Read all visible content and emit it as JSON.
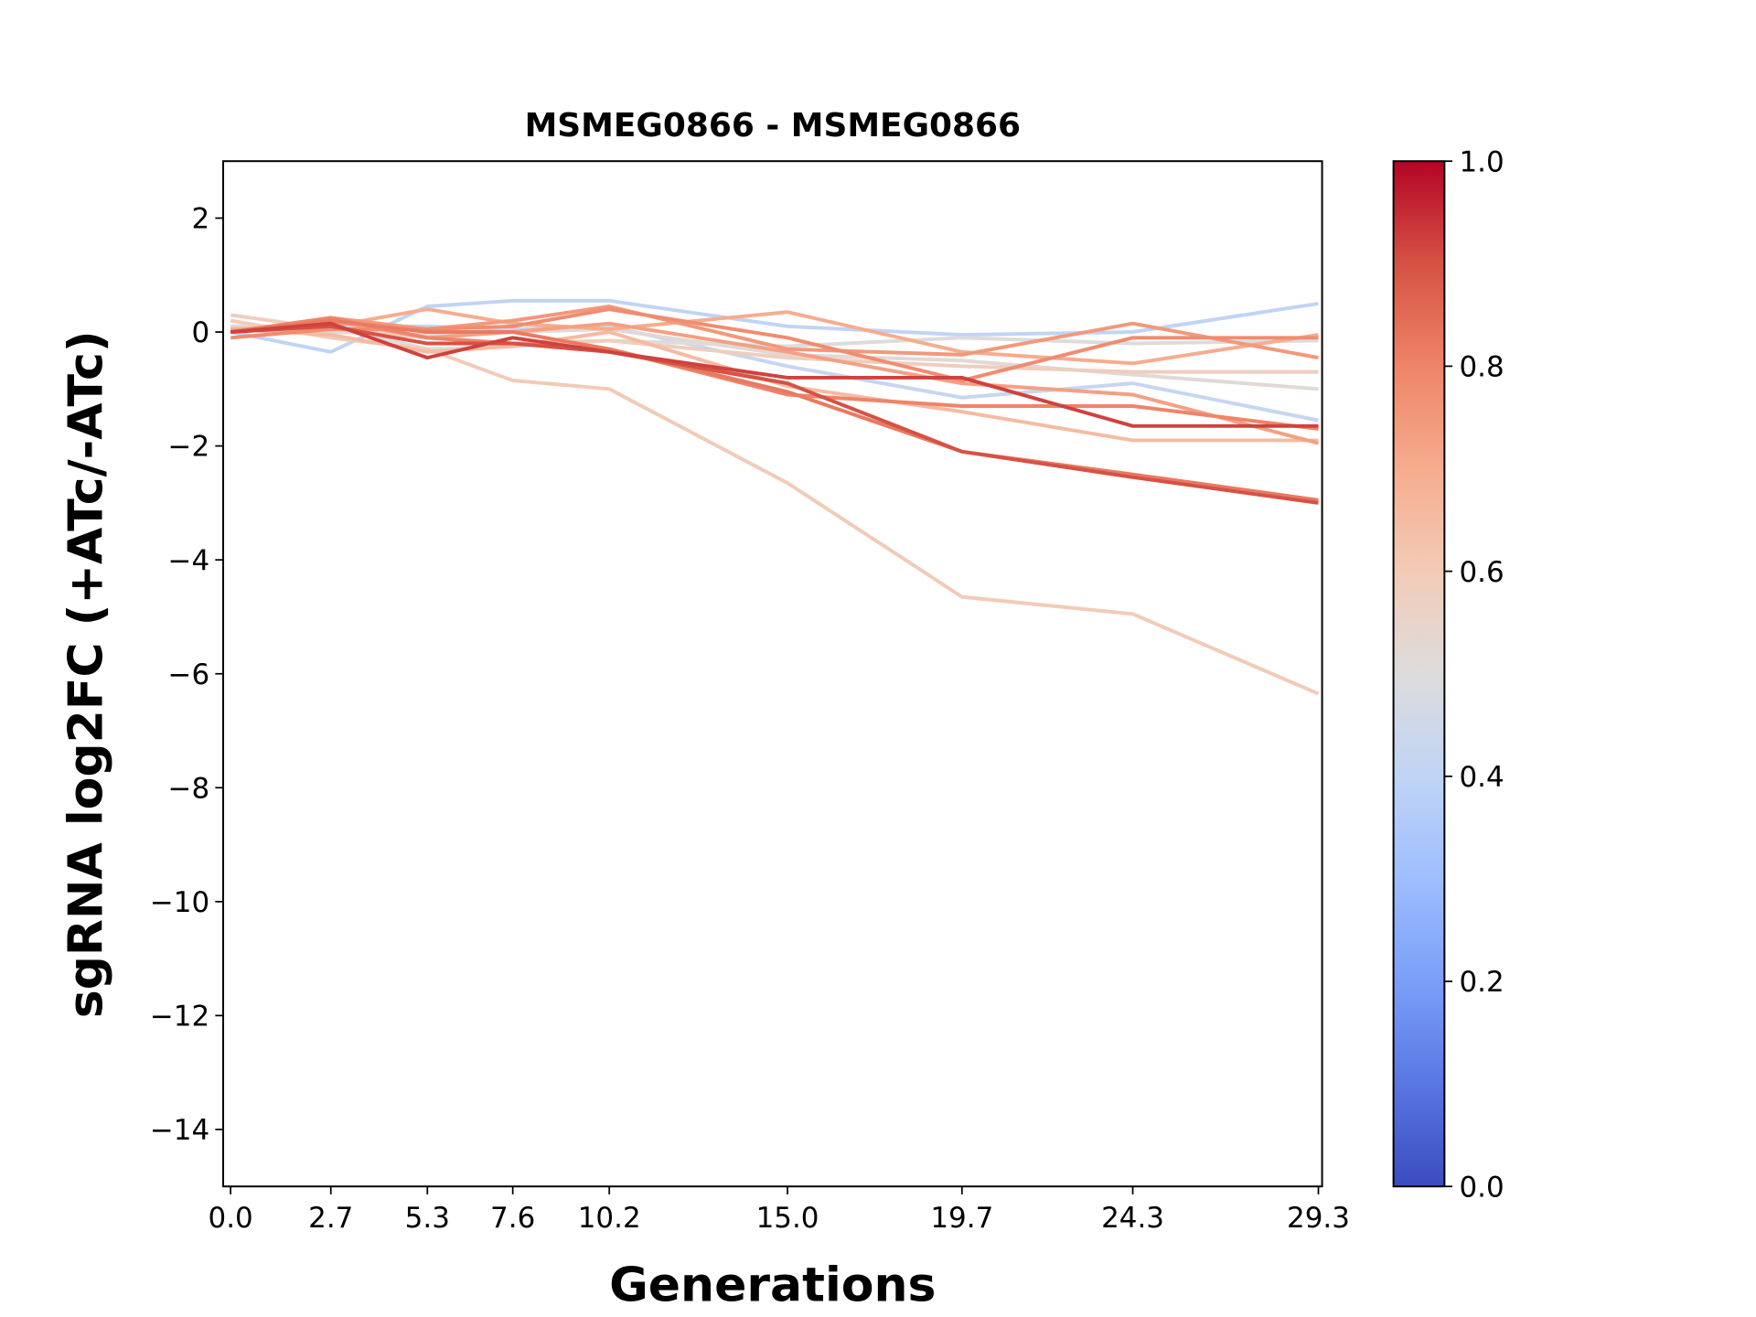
{
  "chart_data": {
    "type": "line",
    "title": "MSMEG0866 - MSMEG0866",
    "xlabel": "Generations",
    "ylabel": "sgRNA log2FC (+ATc/-ATc)",
    "x": [
      0.0,
      2.7,
      5.3,
      7.6,
      10.2,
      15.0,
      19.7,
      24.3,
      29.3
    ],
    "x_tick_labels": [
      "0.0",
      "2.7",
      "5.3",
      "7.6",
      "10.2",
      "15.0",
      "19.7",
      "24.3",
      "29.3"
    ],
    "xlim": [
      -0.2,
      29.4
    ],
    "ylim": [
      -15,
      3
    ],
    "y_ticks": [
      2,
      0,
      -2,
      -4,
      -6,
      -8,
      -10,
      -12,
      -14
    ],
    "y_tick_labels": [
      "2",
      "0",
      "−2",
      "−4",
      "−6",
      "−8",
      "−10",
      "−12",
      "−14"
    ],
    "grid": false,
    "colormap": "coolwarm",
    "colorbar": {
      "range": [
        0.0,
        1.0
      ],
      "tick_labels": [
        "0.0",
        "0.2",
        "0.4",
        "0.6",
        "0.8",
        "1.0"
      ],
      "ticks": [
        0.0,
        0.2,
        0.4,
        0.6,
        0.8,
        1.0
      ]
    },
    "series": [
      {
        "color_value": 0.4,
        "values": [
          0.0,
          -0.35,
          0.45,
          0.55,
          0.55,
          0.1,
          -0.05,
          0.0,
          0.5
        ]
      },
      {
        "color_value": 0.42,
        "values": [
          0.0,
          0.1,
          0.1,
          0.05,
          0.1,
          -0.6,
          -1.15,
          -0.9,
          -1.55
        ]
      },
      {
        "color_value": 0.5,
        "values": [
          0.1,
          0.1,
          -0.3,
          -0.25,
          -0.15,
          -0.25,
          -0.1,
          -0.2,
          -0.15
        ]
      },
      {
        "color_value": 0.52,
        "values": [
          0.1,
          0.0,
          -0.05,
          0.0,
          0.05,
          -0.4,
          -0.5,
          -0.75,
          -1.0
        ]
      },
      {
        "color_value": 0.58,
        "values": [
          0.3,
          0.05,
          -0.1,
          -0.2,
          -0.15,
          -0.45,
          -0.6,
          -0.7,
          -0.7
        ]
      },
      {
        "color_value": 0.6,
        "values": [
          0.2,
          -0.1,
          -0.3,
          -0.85,
          -1.0,
          -2.65,
          -4.65,
          -4.95,
          -6.35
        ]
      },
      {
        "color_value": 0.65,
        "values": [
          0.05,
          -0.05,
          -0.35,
          -0.25,
          0.0,
          -0.95,
          -1.4,
          -1.9,
          -1.9
        ]
      },
      {
        "color_value": 0.7,
        "values": [
          0.05,
          0.1,
          0.4,
          0.15,
          0.05,
          0.35,
          -0.35,
          -0.55,
          -0.05
        ]
      },
      {
        "color_value": 0.73,
        "values": [
          0.0,
          0.2,
          -0.1,
          0.0,
          0.15,
          -0.35,
          -0.9,
          -1.1,
          -1.95
        ]
      },
      {
        "color_value": 0.75,
        "values": [
          0.0,
          0.25,
          0.05,
          0.2,
          0.45,
          -0.3,
          -0.4,
          0.15,
          -0.45
        ]
      },
      {
        "color_value": 0.78,
        "values": [
          -0.1,
          0.05,
          0.05,
          0.1,
          0.4,
          -0.1,
          -0.85,
          -0.1,
          -0.1
        ]
      },
      {
        "color_value": 0.8,
        "values": [
          0.0,
          0.25,
          -0.1,
          -0.2,
          -0.3,
          -1.1,
          -1.3,
          -1.3,
          -1.7
        ]
      },
      {
        "color_value": 0.82,
        "values": [
          0.0,
          0.2,
          0.0,
          0.0,
          -0.3,
          -1.05,
          -2.1,
          -2.5,
          -2.95
        ]
      },
      {
        "color_value": 0.9,
        "values": [
          0.0,
          0.1,
          -0.2,
          -0.2,
          -0.35,
          -0.9,
          -2.1,
          -2.55,
          -3.0
        ]
      },
      {
        "color_value": 0.92,
        "values": [
          0.0,
          0.15,
          -0.45,
          -0.1,
          -0.35,
          -0.8,
          -0.8,
          -1.65,
          -1.65
        ]
      }
    ]
  }
}
